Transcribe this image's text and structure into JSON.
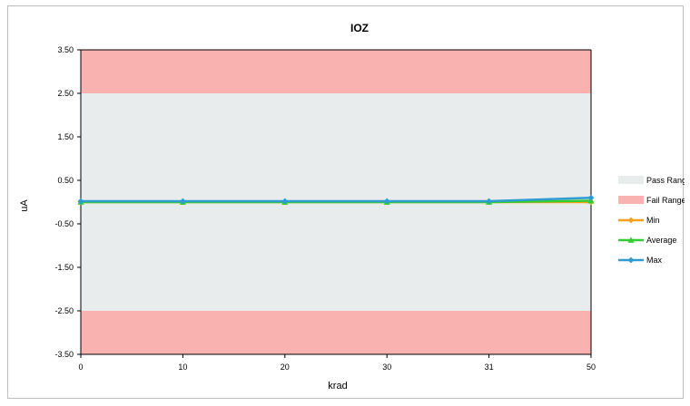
{
  "chart_data": {
    "type": "line",
    "title": "IOZ",
    "xlabel": "krad",
    "ylabel": "uA",
    "categories": [
      "0",
      "10",
      "20",
      "30",
      "31",
      "50"
    ],
    "ylim": [
      -3.5,
      3.5
    ],
    "yticks": [
      "3.50",
      "2.50",
      "1.50",
      "0.50",
      "-0.50",
      "-1.50",
      "-2.50",
      "-3.50"
    ],
    "ytick_values": [
      3.5,
      2.5,
      1.5,
      0.5,
      -0.5,
      -1.5,
      -2.5,
      -3.5
    ],
    "bands": [
      {
        "name": "Pass Range",
        "from": -2.5,
        "to": 2.5,
        "color": "#e8ecec"
      },
      {
        "name": "Fail Range",
        "from": 2.5,
        "to": 3.5,
        "color": "#f9b2b0"
      },
      {
        "name": "Fail Range",
        "from": -3.5,
        "to": -2.5,
        "color": "#f9b2b0"
      }
    ],
    "series": [
      {
        "name": "Min",
        "color": "#f5a01a",
        "marker": "diamond",
        "values": [
          0.0,
          0.0,
          0.0,
          0.0,
          0.0,
          0.0
        ]
      },
      {
        "name": "Average",
        "color": "#33cc33",
        "marker": "triangle",
        "values": [
          0.0,
          0.0,
          0.0,
          0.0,
          0.0,
          0.03
        ]
      },
      {
        "name": "Max",
        "color": "#2e9bd1",
        "marker": "diamond",
        "values": [
          0.02,
          0.02,
          0.02,
          0.02,
          0.02,
          0.1
        ]
      }
    ],
    "legend": [
      {
        "label": "Pass Range",
        "kind": "box",
        "color": "#e8ecec"
      },
      {
        "label": "Fail Range",
        "kind": "box",
        "color": "#f9b2b0"
      },
      {
        "label": "Min",
        "kind": "line",
        "color": "#f5a01a",
        "marker": "diamond"
      },
      {
        "label": "Average",
        "kind": "line",
        "color": "#33cc33",
        "marker": "triangle"
      },
      {
        "label": "Max",
        "kind": "line",
        "color": "#2e9bd1",
        "marker": "diamond"
      }
    ],
    "legend_position": "right",
    "grid": false
  }
}
